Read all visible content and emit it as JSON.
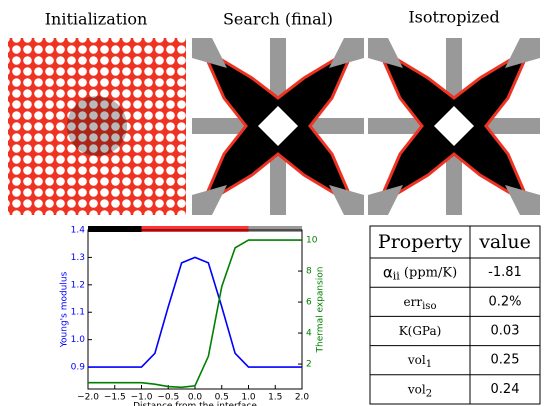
{
  "panels": [
    {
      "title": "Initialization"
    },
    {
      "title": "Search (final)"
    },
    {
      "title": "Isotropized"
    }
  ],
  "chart_data": {
    "type": "line",
    "xlabel": "Distance from the interface",
    "ylabel": "Young's modulus",
    "y2label": "Thermal expansion",
    "x": [
      -2,
      -1.75,
      -1.5,
      -1.25,
      -1,
      -0.75,
      -0.5,
      -0.25,
      0,
      0.25,
      0.5,
      0.75,
      1,
      1.25,
      1.5,
      1.75,
      2
    ],
    "series": [
      {
        "name": "Young's modulus",
        "color": "#0000ff",
        "values": [
          0.9,
          0.9,
          0.9,
          0.9,
          0.9,
          0.95,
          1.12,
          1.28,
          1.3,
          1.28,
          1.12,
          0.95,
          0.9,
          0.9,
          0.9,
          0.9,
          0.9
        ]
      },
      {
        "name": "Thermal expansion",
        "color": "#008000",
        "axis": "y2",
        "values": [
          0.8,
          0.8,
          0.8,
          0.8,
          0.8,
          0.7,
          0.55,
          0.5,
          0.6,
          2.5,
          7,
          9.5,
          10,
          10,
          10,
          10,
          10
        ]
      }
    ],
    "xlim": [
      -2,
      2
    ],
    "xticks": [
      {
        "value": -2,
        "label": "−2.0"
      },
      {
        "value": -1.5,
        "label": "−1.5"
      },
      {
        "value": -1,
        "label": "−1.0"
      },
      {
        "value": -0.5,
        "label": "−0.5"
      },
      {
        "value": 0,
        "label": "0.0"
      },
      {
        "value": 0.5,
        "label": "0.5"
      },
      {
        "value": 1,
        "label": "1.0"
      },
      {
        "value": 1.5,
        "label": "1.5"
      },
      {
        "value": 2,
        "label": "2.0"
      }
    ],
    "ylim": [
      0.82,
      1.4
    ],
    "yticks": [
      0.9,
      {
        "value": 1,
        "label": "1.0"
      },
      1.1,
      1.2,
      1.3,
      1.4
    ],
    "y2lim": [
      0.39,
      10.65
    ],
    "y2ticks": [
      2,
      4,
      6,
      8,
      10
    ]
  },
  "table": {
    "header": [
      "Property",
      "value"
    ],
    "rows": [
      [
        {
          "main": "α",
          "sub": "ii",
          "after": " (ppm/K)"
        },
        "-1.81"
      ],
      [
        {
          "main": "err",
          "sub": "iso"
        },
        "0.2%"
      ],
      [
        {
          "main": "K(GPa)"
        },
        "0.03"
      ],
      [
        {
          "main": "vol",
          "sub": "1"
        },
        "0.25"
      ],
      [
        {
          "main": "vol",
          "sub": "2"
        },
        "0.24"
      ]
    ]
  }
}
